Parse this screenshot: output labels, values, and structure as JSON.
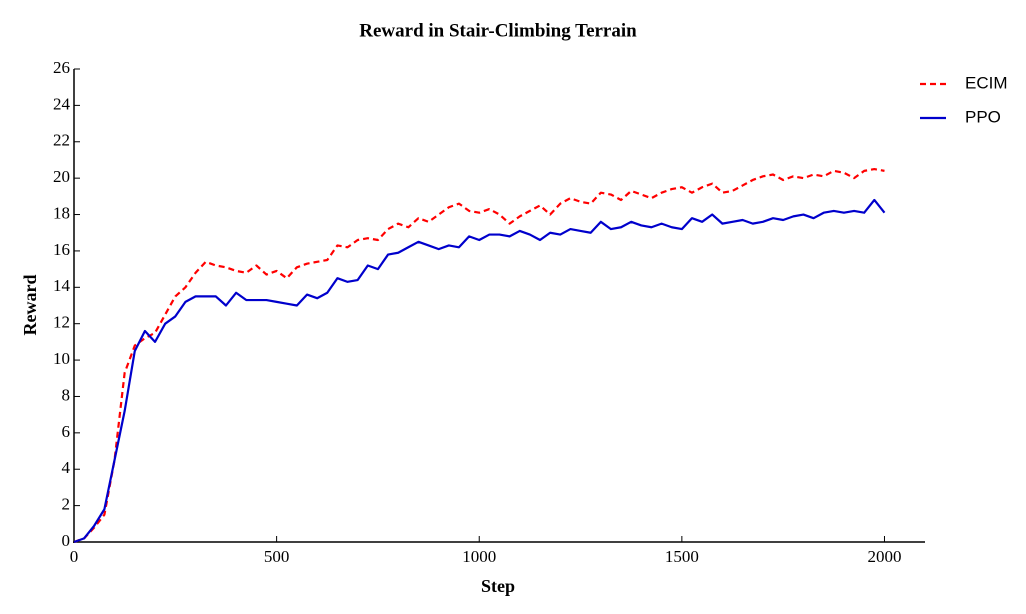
{
  "chart_data": {
    "type": "line",
    "title": "Reward in Stair-Climbing Terrain",
    "x_label": "Step",
    "y_label": "Reward",
    "x": [
      0,
      25,
      50,
      75,
      100,
      125,
      150,
      175,
      200,
      225,
      250,
      275,
      300,
      325,
      350,
      375,
      400,
      425,
      450,
      475,
      500,
      525,
      550,
      575,
      600,
      625,
      650,
      675,
      700,
      725,
      750,
      775,
      800,
      825,
      850,
      875,
      900,
      925,
      950,
      975,
      1000,
      1025,
      1050,
      1075,
      1100,
      1125,
      1150,
      1175,
      1200,
      1225,
      1250,
      1275,
      1300,
      1325,
      1350,
      1375,
      1400,
      1425,
      1450,
      1475,
      1500,
      1525,
      1550,
      1575,
      1600,
      1625,
      1650,
      1675,
      1700,
      1725,
      1750,
      1775,
      1800,
      1825,
      1850,
      1875,
      1900,
      1925,
      1950,
      1975,
      2000
    ],
    "series": [
      {
        "name": "ECIM",
        "color": "#ff0000",
        "dashed": true,
        "values": [
          0,
          0.2,
          0.8,
          1.5,
          4.5,
          9.3,
          10.8,
          11.2,
          11.5,
          12.5,
          13.5,
          14,
          14.8,
          15.4,
          15.2,
          15.1,
          14.9,
          14.8,
          15.2,
          14.7,
          14.9,
          14.5,
          15.1,
          15.3,
          15.4,
          15.5,
          16.3,
          16.2,
          16.6,
          16.7,
          16.6,
          17.2,
          17.5,
          17.3,
          17.8,
          17.6,
          18.0,
          18.4,
          18.6,
          18.2,
          18.1,
          18.3,
          18.0,
          17.5,
          17.9,
          18.2,
          18.5,
          18.0,
          18.6,
          18.9,
          18.7,
          18.6,
          19.2,
          19.1,
          18.8,
          19.3,
          19.1,
          18.9,
          19.2,
          19.4,
          19.5,
          19.2,
          19.5,
          19.7,
          19.2,
          19.3,
          19.6,
          19.9,
          20.1,
          20.2,
          19.9,
          20.1,
          20.0,
          20.2,
          20.1,
          20.4,
          20.3,
          20.0,
          20.4,
          20.5,
          20.4
        ]
      },
      {
        "name": "PPO",
        "color": "#0000cc",
        "dashed": false,
        "values": [
          0,
          0.2,
          0.9,
          1.8,
          4.5,
          7.2,
          10.5,
          11.6,
          11,
          12.0,
          12.4,
          13.2,
          13.5,
          13.5,
          13.5,
          13.0,
          13.7,
          13.3,
          13.3,
          13.3,
          13.2,
          13.1,
          13.0,
          13.6,
          13.4,
          13.7,
          14.5,
          14.3,
          14.4,
          15.2,
          15.0,
          15.8,
          15.9,
          16.2,
          16.5,
          16.3,
          16.1,
          16.3,
          16.2,
          16.8,
          16.6,
          16.9,
          16.9,
          16.8,
          17.1,
          16.9,
          16.6,
          17.0,
          16.9,
          17.2,
          17.1,
          17.0,
          17.6,
          17.2,
          17.3,
          17.6,
          17.4,
          17.3,
          17.5,
          17.3,
          17.2,
          17.8,
          17.6,
          18.0,
          17.5,
          17.6,
          17.7,
          17.5,
          17.6,
          17.8,
          17.7,
          17.9,
          18.0,
          17.8,
          18.1,
          18.2,
          18.1,
          18.2,
          18.1,
          18.8,
          18.1
        ]
      }
    ],
    "xlim": [
      0,
      2100
    ],
    "xticks": [
      0,
      500,
      1000,
      1500,
      2000
    ],
    "ylim": [
      0,
      26
    ],
    "yticks": [
      0,
      2,
      4,
      6,
      8,
      10,
      12,
      14,
      16,
      18,
      20,
      22,
      24,
      26
    ],
    "legend": "upper-right"
  }
}
